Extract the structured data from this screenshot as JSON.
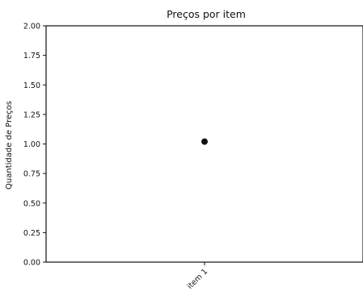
{
  "chart_data": {
    "type": "scatter",
    "title": "Preços por item",
    "xlabel": "",
    "ylabel": "Quantidade de Preços",
    "categories": [
      "item 1"
    ],
    "series": [
      {
        "values": [
          1.02
        ]
      }
    ],
    "ylim": [
      0,
      2
    ],
    "yticks": [
      "0.00",
      "0.25",
      "0.50",
      "0.75",
      "1.00",
      "1.25",
      "1.50",
      "1.75",
      "2.00"
    ],
    "grid": false,
    "legend": "none",
    "colors": {
      "marker": "#111111",
      "axis": "#111111",
      "background": "#ffffff"
    }
  }
}
